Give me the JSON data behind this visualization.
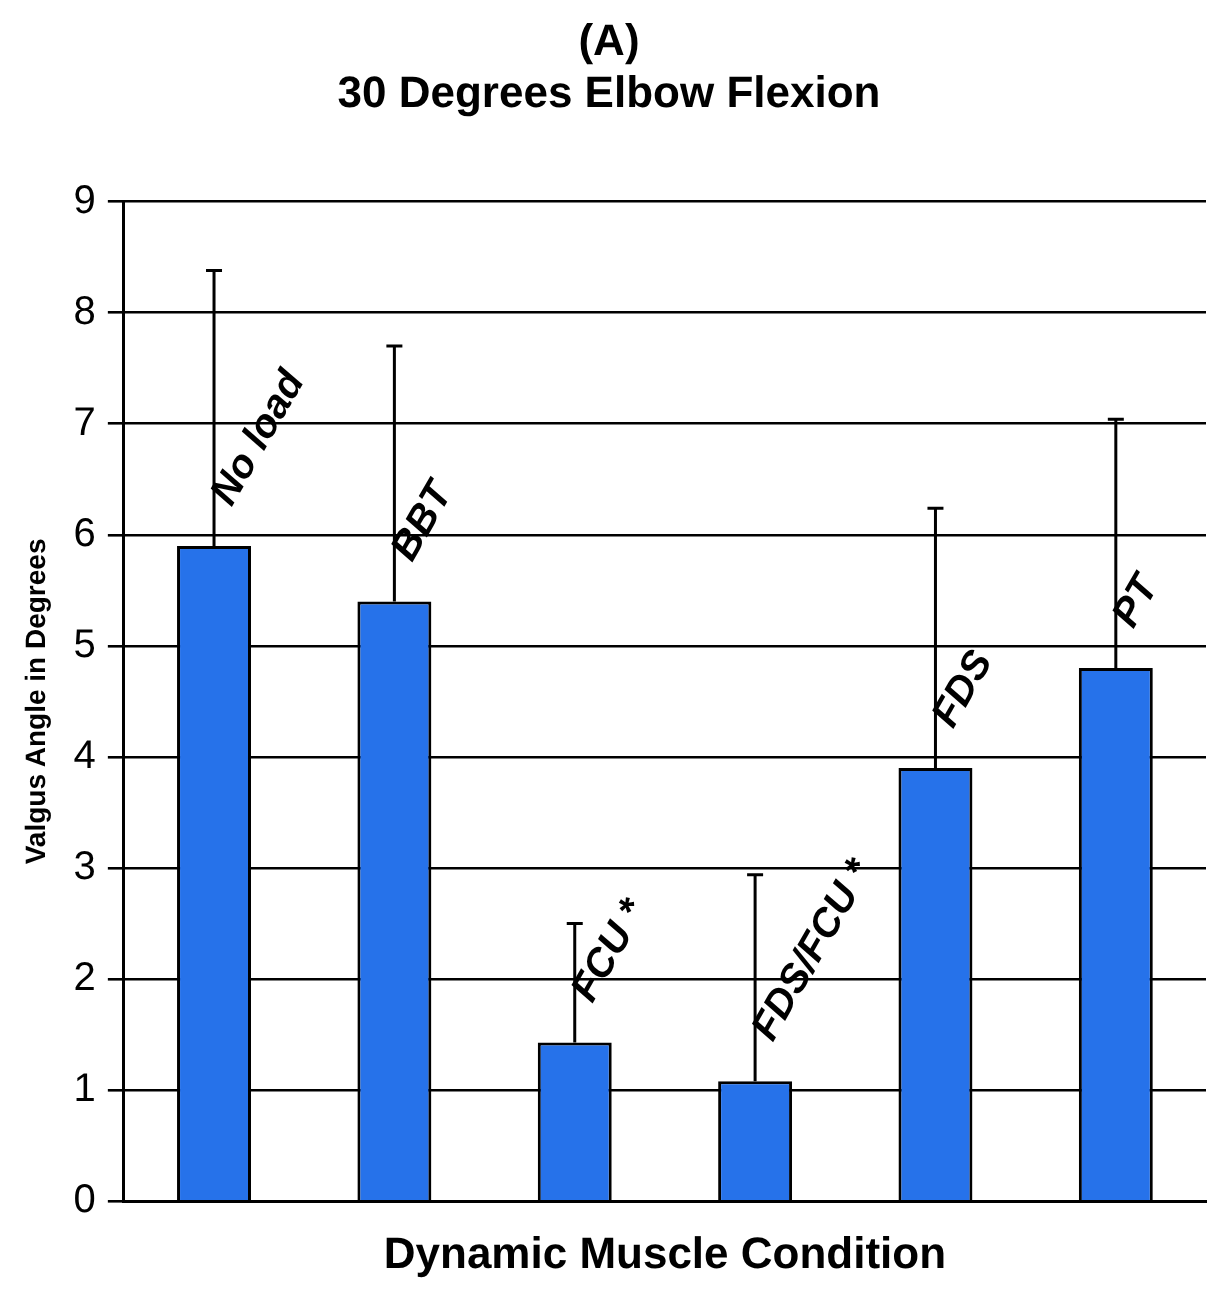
{
  "chart_data": {
    "type": "bar",
    "title": "30 Degrees Elbow Flexion",
    "annotations": [
      "(A)"
    ],
    "xlabel": "Dynamic Muscle Condition",
    "ylabel": "Valgus Angle in Degrees",
    "categories": [
      "No load",
      "BBT",
      "FCU *",
      "FDS/FCU *",
      "FDS",
      "PT"
    ],
    "values": [
      5.9,
      5.4,
      1.43,
      1.08,
      3.9,
      4.8
    ],
    "errors": [
      [
        5.9,
        8.38
      ],
      [
        5.4,
        7.7
      ],
      [
        1.43,
        2.5
      ],
      [
        1.08,
        2.94
      ],
      [
        3.9,
        6.24
      ],
      [
        4.8,
        7.04
      ]
    ],
    "color": "#2672ea",
    "ylim": [
      0,
      9
    ],
    "yticks": [
      0,
      1,
      2,
      3,
      4,
      5,
      6,
      7,
      8,
      9
    ],
    "grid": "y",
    "legend": false
  }
}
